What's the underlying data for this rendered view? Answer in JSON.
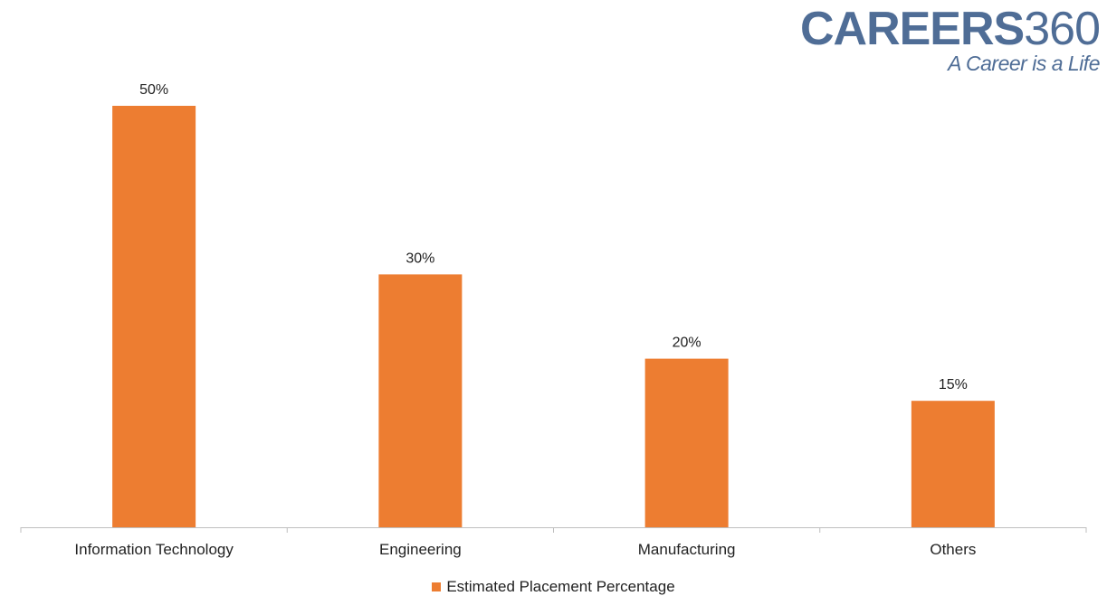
{
  "logo": {
    "word": "CAREERS",
    "number": "360",
    "tagline": "A Career is a Life"
  },
  "colors": {
    "bar": "#ED7D31",
    "axis": "#BFBFBF",
    "logo": "#4F6D96"
  },
  "chart_data": {
    "type": "bar",
    "categories": [
      "Information Technology",
      "Engineering",
      "Manufacturing",
      "Others"
    ],
    "series": [
      {
        "name": "Estimated Placement Percentage",
        "values": [
          50,
          30,
          20,
          15
        ]
      }
    ],
    "data_labels": [
      "50%",
      "30%",
      "20%",
      "15%"
    ],
    "ylim": [
      0,
      50
    ],
    "y_axis_visible": false,
    "grid": false,
    "legend_position": "bottom"
  }
}
